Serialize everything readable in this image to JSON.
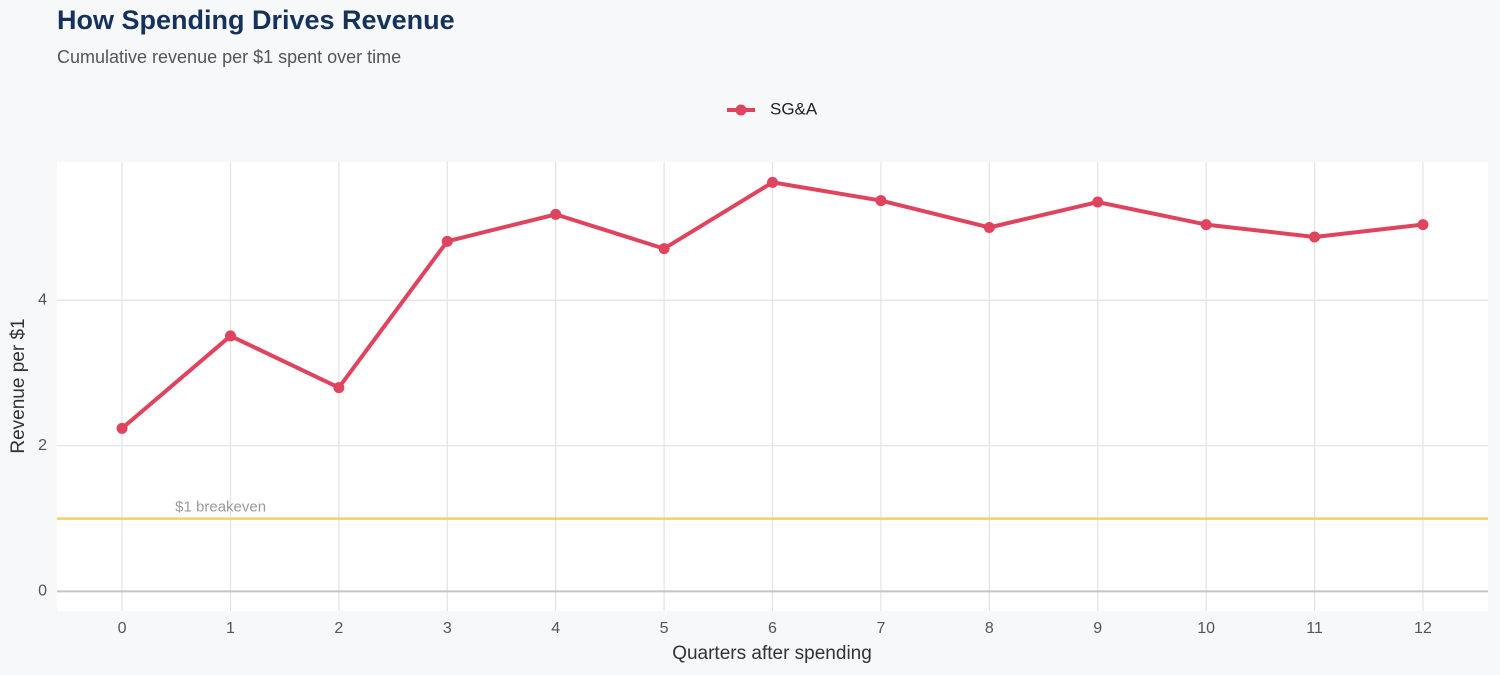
{
  "chart_data": {
    "type": "line",
    "title": "How Spending Drives Revenue",
    "subtitle": "Cumulative revenue per $1 spent over time",
    "x_label": "Quarters after spending",
    "y_label": "Revenue per $1",
    "x": [
      0,
      1,
      2,
      3,
      4,
      5,
      6,
      7,
      8,
      9,
      10,
      11,
      12
    ],
    "series": [
      {
        "name": "SG&A",
        "color": "#e0435e",
        "values": [
          2.24,
          3.51,
          2.8,
          4.81,
          5.18,
          4.71,
          5.62,
          5.37,
          5.0,
          5.35,
          5.04,
          4.87,
          5.04
        ]
      }
    ],
    "xlim": [
      -0.6,
      12.6
    ],
    "xticks": [
      0,
      1,
      2,
      3,
      4,
      5,
      6,
      7,
      8,
      9,
      10,
      11,
      12
    ],
    "ylim": [
      -0.27,
      5.9
    ],
    "yticks": [
      0,
      2,
      4
    ],
    "grid": true,
    "legend_position": "top",
    "reference_line": {
      "value": 1,
      "label": "$1 breakeven",
      "color": "#f5cf6a"
    }
  }
}
